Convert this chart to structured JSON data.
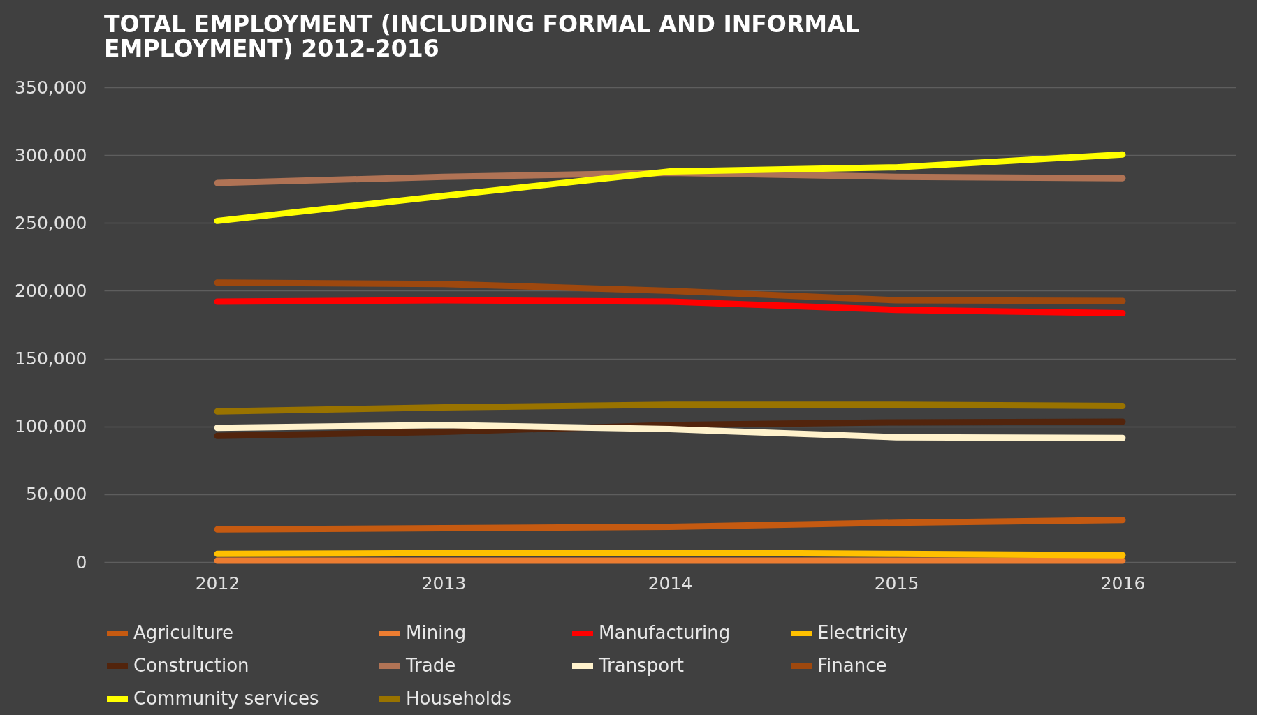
{
  "chart_data": {
    "type": "line",
    "title": [
      "TOTAL EMPLOYMENT (INCLUDING FORMAL AND INFORMAL",
      "EMPLOYMENT) 2012-2016"
    ],
    "categories": [
      "2012",
      "2013",
      "2014",
      "2015",
      "2016"
    ],
    "ylim": [
      0,
      350000
    ],
    "yticks": [
      0,
      {
        "value": 50000,
        "label": "50,000"
      },
      {
        "value": 100000,
        "label": "100,000"
      },
      {
        "value": 150000,
        "label": "150,000"
      },
      {
        "value": 200000,
        "label": "200,000"
      },
      {
        "value": 250000,
        "label": "250,000"
      },
      {
        "value": 300000,
        "label": "300,000"
      },
      {
        "value": 350000,
        "label": "350,000"
      }
    ],
    "grid": "y",
    "legend": "bottom",
    "marker": "none",
    "line_style": "solid",
    "series": [
      {
        "name": "Agriculture",
        "color": "#c55a11",
        "values": [
          24000,
          25000,
          26000,
          29000,
          31000
        ]
      },
      {
        "name": "Mining",
        "color": "#ed7d31",
        "values": [
          1000,
          1000,
          1000,
          1000,
          1000
        ]
      },
      {
        "name": "Manufacturing",
        "color": "#ff0000",
        "values": [
          192000,
          193000,
          192000,
          186000,
          183500
        ]
      },
      {
        "name": "Electricity",
        "color": "#ffc000",
        "values": [
          6000,
          6500,
          7000,
          6000,
          5000
        ]
      },
      {
        "name": "Construction",
        "color": "#52240c",
        "values": [
          93000,
          96000,
          101000,
          103000,
          103500
        ]
      },
      {
        "name": "Trade",
        "color": "#b07355",
        "values": [
          279500,
          284000,
          287000,
          284000,
          283000
        ]
      },
      {
        "name": "Transport",
        "color": "#fff2cc",
        "values": [
          99000,
          101000,
          98000,
          92000,
          91500
        ]
      },
      {
        "name": "Finance",
        "color": "#9e480e",
        "values": [
          206000,
          205000,
          200000,
          193000,
          192500
        ]
      },
      {
        "name": "Community services",
        "color": "#ffff00",
        "values": [
          251500,
          270000,
          288000,
          291000,
          300500
        ]
      },
      {
        "name": "Households",
        "color": "#997300",
        "values": [
          111000,
          114000,
          116000,
          116000,
          115000
        ]
      }
    ]
  }
}
